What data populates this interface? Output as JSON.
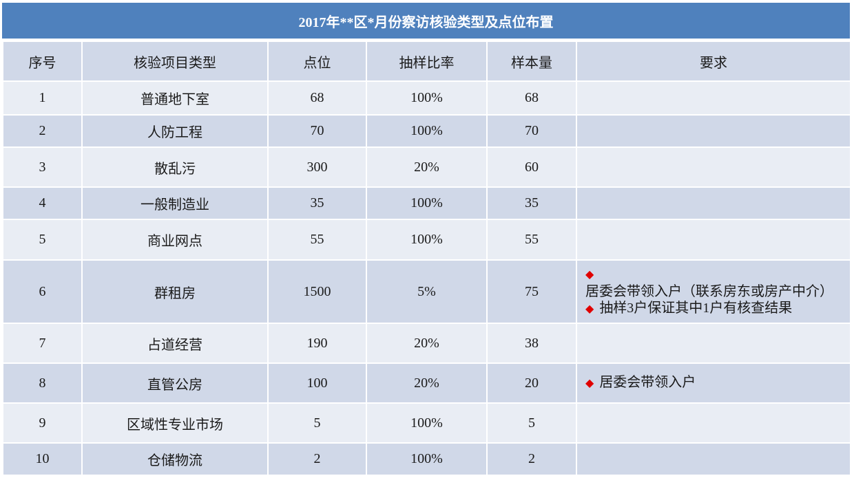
{
  "title": "2017年**区*月份察访核验类型及点位布置",
  "headers": [
    "序号",
    "核验项目类型",
    "点位",
    "抽样比率",
    "样本量",
    "要求"
  ],
  "rows": [
    {
      "no": "1",
      "type": "普通地下室",
      "points": "68",
      "ratio": "100%",
      "sample": "68",
      "req": []
    },
    {
      "no": "2",
      "type": "人防工程",
      "points": "70",
      "ratio": "100%",
      "sample": "70",
      "req": []
    },
    {
      "no": "3",
      "type": "散乱污",
      "points": "300",
      "ratio": "20%",
      "sample": "60",
      "req": []
    },
    {
      "no": "4",
      "type": "一般制造业",
      "points": "35",
      "ratio": "100%",
      "sample": "35",
      "req": []
    },
    {
      "no": "5",
      "type": "商业网点",
      "points": "55",
      "ratio": "100%",
      "sample": "55",
      "req": []
    },
    {
      "no": "6",
      "type": "群租房",
      "points": "1500",
      "ratio": "5%",
      "sample": "75",
      "req": [
        "居委会带领入户（联系房东或房产中介）",
        "抽样3户保证其中1户有核查结果"
      ]
    },
    {
      "no": "7",
      "type": "占道经营",
      "points": "190",
      "ratio": "20%",
      "sample": "38",
      "req": []
    },
    {
      "no": "8",
      "type": "直管公房",
      "points": "100",
      "ratio": "20%",
      "sample": "20",
      "req": [
        "居委会带领入户"
      ]
    },
    {
      "no": "9",
      "type": "区域性专业市场",
      "points": "5",
      "ratio": "100%",
      "sample": "5",
      "req": []
    },
    {
      "no": "10",
      "type": "仓储物流",
      "points": "2",
      "ratio": "100%",
      "sample": "2",
      "req": []
    }
  ],
  "bullet_icon": "red-diamond",
  "colors": {
    "title_bg": "#4f81bd",
    "header_bg": "#d0d8e8",
    "row_light": "#e9edf4",
    "row_dark": "#d0d8e8",
    "bullet": "#e00000"
  }
}
